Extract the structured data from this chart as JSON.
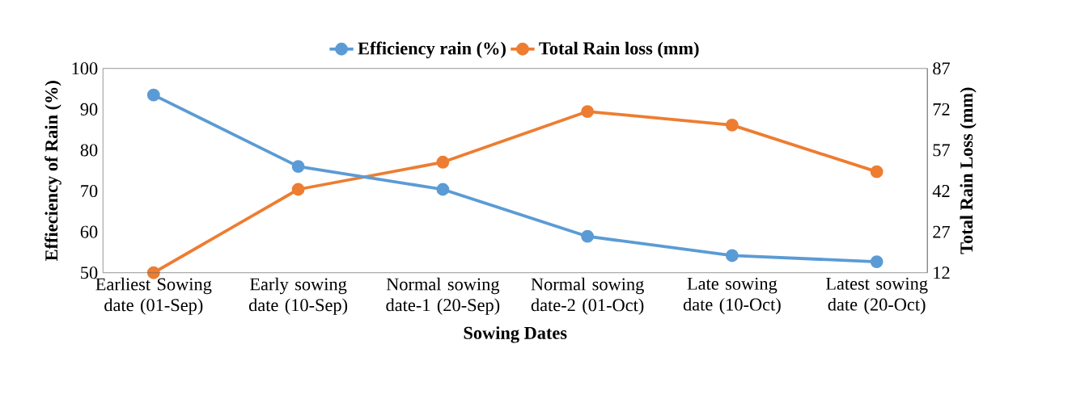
{
  "chart_data": {
    "type": "line",
    "xlabel": "Sowing Dates",
    "ylabel": "Effieciency of Rain (%)",
    "y2label": "Total Rain Loss (mm)",
    "categories": [
      "Earliest Sowing date (01-Sep)",
      "Early sowing date (10-Sep)",
      "Normal sowing date-1 (20-Sep)",
      "Normal sowing date-2 (01-Oct)",
      "Late sowing date (10-Oct)",
      "Latest sowing date (20-Oct)"
    ],
    "series": [
      {
        "name": "Efficiency rain (%)",
        "color": "#5b9bd5",
        "values": [
          93.5,
          76,
          70.4,
          58.9,
          54.2,
          52.7
        ]
      },
      {
        "name": "Total Rain loss (mm)",
        "color": "#ed7d31",
        "axis": "y2",
        "values": [
          12,
          42.6,
          52.6,
          71.2,
          66.2,
          49.1
        ]
      }
    ],
    "ylim": [
      50,
      100
    ],
    "yticks": [
      50,
      60,
      70,
      80,
      90,
      100
    ],
    "y2lim": [
      12,
      87
    ],
    "y2ticks": [
      12,
      27,
      42,
      57,
      72,
      87
    ],
    "legend": "top",
    "marker": "circle",
    "grid": false
  }
}
